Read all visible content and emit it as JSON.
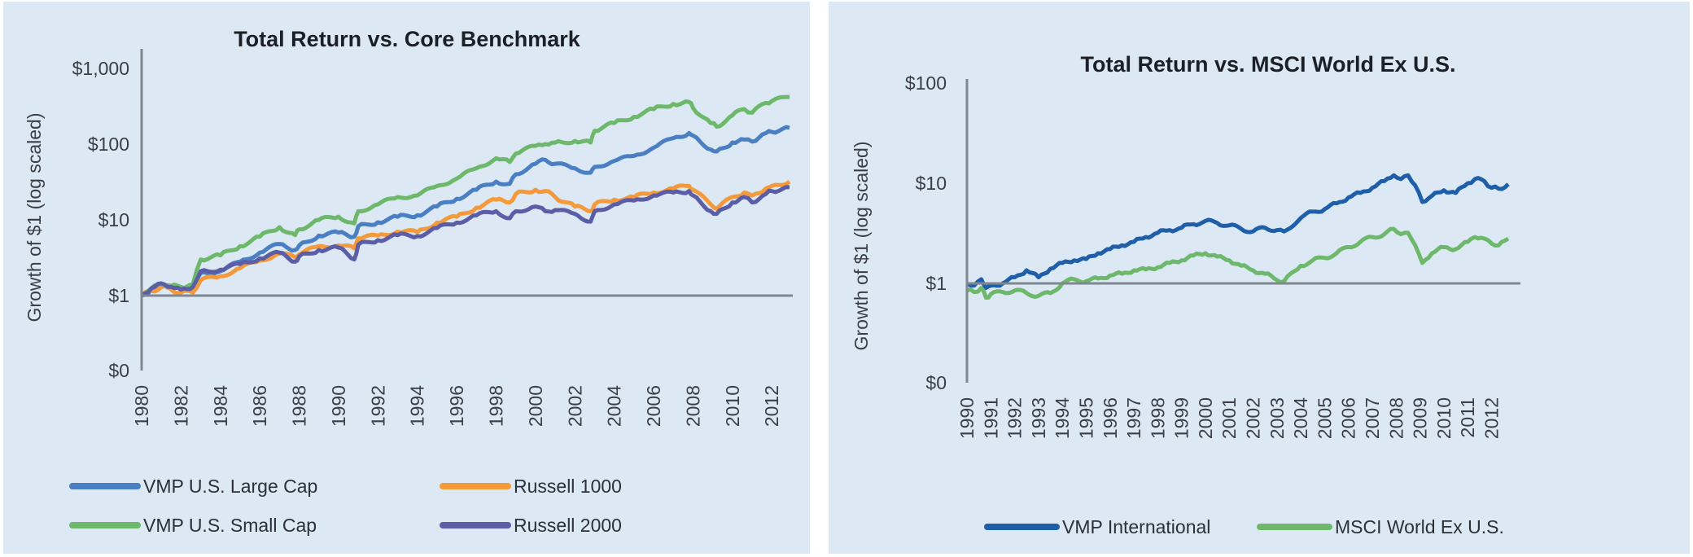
{
  "chart_data": [
    {
      "type": "line",
      "title": "Total Return vs. Core Benchmark",
      "xlabel": "",
      "ylabel": "Growth of $1 (log scaled)",
      "yscale": "log",
      "ylim": [
        0,
        1000
      ],
      "yticks": [
        {
          "value": 1000,
          "label": "$1,000"
        },
        {
          "value": 100,
          "label": "$100"
        },
        {
          "value": 10,
          "label": "$10"
        },
        {
          "value": 1,
          "label": "$1"
        },
        {
          "value": 0,
          "label": "$0"
        }
      ],
      "xlim": [
        1980,
        2012.9
      ],
      "xticks": [
        "1980",
        "1982",
        "1984",
        "1986",
        "1988",
        "1990",
        "1992",
        "1994",
        "1996",
        "1998",
        "2000",
        "2002",
        "2004",
        "2006",
        "2008",
        "2010",
        "2012"
      ],
      "legend_position": "bottom",
      "grid": false,
      "x": [
        1980,
        1980.5,
        1981,
        1981.5,
        1982,
        1982.6,
        1983,
        1984,
        1985,
        1986,
        1987,
        1987.8,
        1988,
        1989,
        1990,
        1990.8,
        1991,
        1992,
        1993,
        1994,
        1995,
        1996,
        1997,
        1998,
        1998.7,
        1999,
        2000,
        2000.5,
        2001,
        2002,
        2002.8,
        2003,
        2004,
        2005,
        2006,
        2007,
        2007.8,
        2008,
        2008.9,
        2009.2,
        2010,
        2010.6,
        2011,
        2011.7,
        2012,
        2012.9
      ],
      "series": [
        {
          "name": "VMP U.S. Large Cap",
          "color": "#4a7fc4",
          "values": [
            1,
            1.2,
            1.4,
            1.3,
            1.25,
            1.3,
            2.0,
            2.1,
            2.8,
            3.7,
            4.8,
            4.0,
            4.6,
            6.2,
            6.8,
            6.0,
            8.2,
            9.3,
            11,
            11.5,
            15,
            19,
            25,
            32,
            30,
            40,
            55,
            62,
            55,
            48,
            42,
            50,
            60,
            70,
            90,
            120,
            140,
            130,
            85,
            80,
            105,
            115,
            108,
            140,
            145,
            165
          ]
        },
        {
          "name": "Russell 1000",
          "color": "#f49a3a",
          "values": [
            1,
            1.15,
            1.3,
            1.2,
            1.1,
            1.1,
            1.6,
            1.8,
            2.3,
            2.9,
            3.6,
            3.2,
            3.5,
            4.5,
            4.6,
            4.2,
            5.7,
            6.2,
            7.0,
            6.9,
            9.2,
            11,
            14.5,
            18.5,
            17,
            22,
            25,
            24,
            20,
            15,
            13,
            16,
            18.5,
            20,
            23,
            26,
            28,
            25,
            16,
            14,
            20,
            23,
            21,
            26,
            28,
            32
          ]
        },
        {
          "name": "VMP U.S. Small Cap",
          "color": "#6db86a",
          "values": [
            1,
            1.25,
            1.45,
            1.35,
            1.3,
            1.4,
            3.0,
            3.4,
            4.5,
            6.0,
            8.0,
            6.3,
            7.5,
            10,
            11,
            9.0,
            13,
            16,
            20,
            21,
            28,
            35,
            48,
            65,
            58,
            75,
            95,
            100,
            105,
            110,
            105,
            150,
            190,
            230,
            290,
            340,
            360,
            300,
            190,
            170,
            240,
            290,
            260,
            350,
            370,
            420
          ]
        },
        {
          "name": "Russell 2000",
          "color": "#5b5ea6",
          "values": [
            1,
            1.25,
            1.45,
            1.3,
            1.2,
            1.3,
            2.1,
            2.2,
            2.6,
            3.1,
            3.7,
            2.8,
            3.3,
            4.0,
            4.3,
            3.0,
            4.7,
            5.4,
            6.3,
            6.1,
            7.8,
            9.2,
            11.5,
            13,
            10.5,
            13,
            15,
            13,
            13.5,
            12,
            9.5,
            13,
            16,
            18,
            21,
            23,
            24,
            21,
            13,
            12,
            17,
            20,
            17,
            22,
            24,
            27
          ]
        }
      ]
    },
    {
      "type": "line",
      "title": "Total Return vs. MSCI World Ex U.S.",
      "xlabel": "",
      "ylabel": "Growth of $1 (log scaled)",
      "yscale": "log",
      "ylim": [
        0,
        100
      ],
      "yticks": [
        {
          "value": 100,
          "label": "$100"
        },
        {
          "value": 10,
          "label": "$10"
        },
        {
          "value": 1,
          "label": "$1"
        },
        {
          "value": 0,
          "label": "$0"
        }
      ],
      "xlim": [
        1990,
        2012.7
      ],
      "xticks": [
        "1990",
        "1991",
        "1992",
        "1993",
        "1994",
        "1995",
        "1996",
        "1997",
        "1998",
        "1999",
        "2000",
        "2001",
        "2002",
        "2003",
        "2004",
        "2005",
        "2006",
        "2007",
        "2008",
        "2009",
        "2010",
        "2011",
        "2012"
      ],
      "legend_position": "bottom",
      "grid": false,
      "x": [
        1990,
        1990.3,
        1990.6,
        1990.8,
        1991,
        1991.5,
        1992,
        1992.5,
        1993,
        1993.5,
        1994,
        1994.5,
        1995,
        1995.5,
        1996,
        1996.5,
        1997,
        1997.5,
        1998,
        1998.5,
        1999,
        1999.5,
        2000,
        2000.5,
        2001,
        2001.5,
        2002,
        2002.5,
        2003,
        2003.3,
        2004,
        2004.5,
        2005,
        2005.5,
        2006,
        2006.5,
        2007,
        2007.5,
        2007.9,
        2008.2,
        2008.5,
        2008.8,
        2009.1,
        2009.5,
        2010,
        2010.5,
        2011,
        2011.3,
        2011.7,
        2012,
        2012.3,
        2012.7
      ],
      "series": [
        {
          "name": "VMP International",
          "color": "#1f5ea8",
          "values": [
            1.0,
            0.95,
            1.1,
            0.9,
            0.95,
            1.0,
            1.15,
            1.35,
            1.15,
            1.4,
            1.6,
            1.7,
            1.75,
            2.0,
            2.2,
            2.4,
            2.6,
            2.9,
            3.2,
            3.4,
            3.6,
            3.9,
            4.2,
            4.0,
            3.8,
            3.5,
            3.3,
            3.6,
            3.4,
            3.3,
            4.5,
            5.2,
            5.5,
            6.3,
            7.2,
            8.0,
            9.0,
            10.5,
            12.0,
            11.0,
            12.0,
            9.5,
            6.5,
            7.5,
            8.5,
            8.0,
            10.0,
            11.0,
            10.5,
            9.0,
            8.8,
            9.8
          ]
        },
        {
          "name": "MSCI World Ex U.S.",
          "color": "#6db86a",
          "values": [
            0.85,
            0.82,
            0.9,
            0.72,
            0.78,
            0.82,
            0.85,
            0.8,
            0.75,
            0.8,
            1.0,
            1.1,
            1.05,
            1.12,
            1.2,
            1.25,
            1.35,
            1.38,
            1.45,
            1.6,
            1.7,
            1.9,
            2.0,
            1.85,
            1.7,
            1.5,
            1.35,
            1.25,
            1.08,
            1.05,
            1.5,
            1.7,
            1.8,
            2.0,
            2.3,
            2.6,
            2.9,
            3.1,
            3.5,
            3.1,
            3.2,
            2.4,
            1.6,
            2.0,
            2.3,
            2.2,
            2.6,
            2.9,
            2.8,
            2.5,
            2.4,
            2.8
          ]
        }
      ]
    }
  ]
}
